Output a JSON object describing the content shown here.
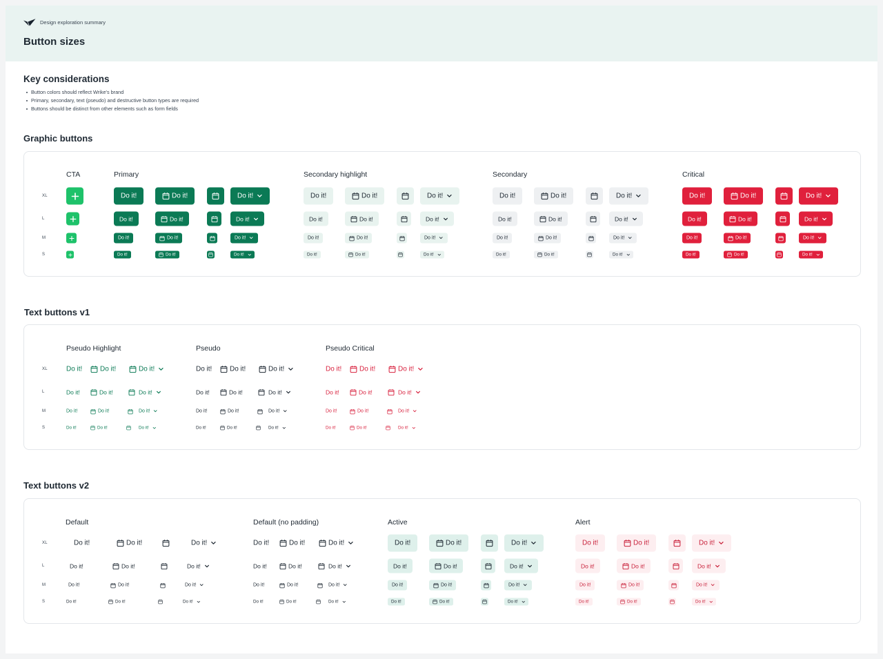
{
  "header": {
    "brand_text": "Design exploration summary",
    "page_title": "Button sizes",
    "brand_icon": "checkmark-logo-icon",
    "background": "#e9f3f1"
  },
  "key_considerations": {
    "title": "Key considerations",
    "items": [
      "Button colors should reflect Wrike's brand",
      "Primary, secondary, text (pseudo) and destructive button types are required",
      "Buttons should be distinct from other elements such as form fields"
    ]
  },
  "button_label": "Do it!",
  "row_labels": [
    "XL",
    "L",
    "M",
    "S"
  ],
  "graphic": {
    "title": "Graphic buttons",
    "columns": {
      "cta": "CTA",
      "primary": "Primary",
      "secondary_highlight": "Secondary highlight",
      "secondary": "Secondary",
      "critical": "Critical"
    }
  },
  "text_v1": {
    "title": "Text buttons v1",
    "columns": {
      "pseudo_highlight": "Pseudo Highlight",
      "pseudo": "Pseudo",
      "pseudo_critical": "Pseudo Critical"
    }
  },
  "text_v2": {
    "title": "Text buttons v2",
    "columns": {
      "default": "Default",
      "default_no_padding": "Default (no padding)",
      "active": "Active",
      "alert": "Alert"
    }
  },
  "colors": {
    "primary": "#0b7a55",
    "cta": "#1ec26a",
    "critical": "#e0203c",
    "secondary_highlight": "#e8f3ef",
    "secondary": "#eef0f2",
    "active": "#def0eb",
    "alert": "#fdeef0"
  },
  "icons": {
    "cta": "plus-icon",
    "leading": "calendar-icon",
    "trailing": "chevron-down-icon"
  }
}
